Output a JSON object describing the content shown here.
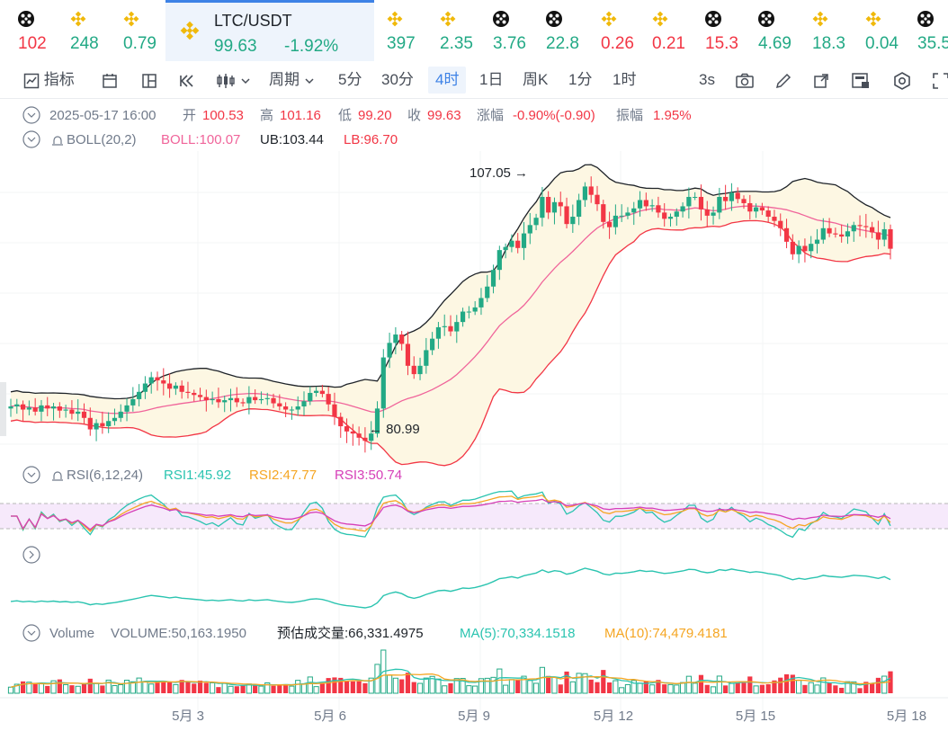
{
  "tickers": [
    {
      "icon": "chain-icon",
      "value": "102",
      "dir": "dn"
    },
    {
      "icon": "bnb-icon",
      "value": "248",
      "dir": "up"
    },
    {
      "icon": "bnb-icon",
      "value": "0.79",
      "dir": "up"
    },
    {
      "icon": "bnb-icon",
      "value": "397",
      "dir": "up"
    },
    {
      "icon": "bnb-icon",
      "value": "2.35",
      "dir": "up"
    },
    {
      "icon": "chain-icon",
      "value": "3.76",
      "dir": "up"
    },
    {
      "icon": "chain-icon",
      "value": "22.8",
      "dir": "up"
    },
    {
      "icon": "bnb-icon",
      "value": "0.26",
      "dir": "dn"
    },
    {
      "icon": "bnb-icon",
      "value": "0.21",
      "dir": "dn"
    },
    {
      "icon": "chain-icon",
      "value": "15.3",
      "dir": "dn"
    },
    {
      "icon": "chain-icon",
      "value": "4.69",
      "dir": "up"
    },
    {
      "icon": "bnb-icon",
      "value": "18.3",
      "dir": "up"
    },
    {
      "icon": "bnb-icon",
      "value": "0.04",
      "dir": "up"
    },
    {
      "icon": "chain-icon",
      "value": "35.5",
      "dir": "up"
    }
  ],
  "active_ticker": {
    "symbol": "LTC/USDT",
    "price": "99.63",
    "change": "-1.92%"
  },
  "toolbar": {
    "indicators": "指标",
    "period_label": "周期",
    "intervals": [
      "5分",
      "30分",
      "4时",
      "1日",
      "周K",
      "1分",
      "1时"
    ],
    "active_interval": "4时",
    "refresh": "3s"
  },
  "ohlc": {
    "date": "2025-05-17 16:00",
    "open_label": "开",
    "open": "100.53",
    "high_label": "高",
    "high": "101.16",
    "low_label": "低",
    "low": "99.20",
    "close_label": "收",
    "close": "99.63",
    "change_label": "涨幅",
    "change": "-0.90%(-0.90)",
    "amp_label": "振幅",
    "amp": "1.95%"
  },
  "boll": {
    "label": "BOLL(20,2)",
    "boll": "BOLL:100.07",
    "ub": "UB:103.44",
    "lb": "LB:96.70"
  },
  "rsi": {
    "label": "RSI(6,12,24)",
    "rsi1": "RSI1:45.92",
    "rsi2": "RSI2:47.77",
    "rsi3": "RSI3:50.74"
  },
  "volume": {
    "label": "Volume",
    "value": "VOLUME:50,163.1950",
    "estimate": "预估成交量:66,331.4975",
    "ma5": "MA(5):70,334.1518",
    "ma10": "MA(10):74,479.4181"
  },
  "colors": {
    "up": "#22a985",
    "down": "#f23645",
    "boll": "#f0649a",
    "ub": "#1e2329",
    "lb": "#f23645",
    "rsi1": "#2bc4b0",
    "rsi2": "#f5a623",
    "rsi3": "#d63fb8",
    "accent": "#3d82e6"
  },
  "chart_data": {
    "type": "candlestick",
    "interval": "4h",
    "x_ticks": [
      "5月 3",
      "5月 6",
      "5月 9",
      "5月 12",
      "5月 15",
      "5月 18"
    ],
    "annotations": [
      {
        "text": "107.05",
        "kind": "high"
      },
      {
        "text": "80.99",
        "kind": "low"
      }
    ],
    "close_series": [
      84.5,
      84.7,
      84.2,
      84.4,
      84.0,
      84.6,
      84.3,
      84.5,
      84.1,
      84.2,
      83.8,
      84.0,
      83.4,
      82.3,
      82.9,
      82.6,
      83.1,
      83.4,
      84.0,
      84.6,
      85.2,
      85.9,
      86.7,
      87.3,
      87.0,
      86.7,
      86.2,
      86.5,
      85.9,
      85.8,
      85.6,
      85.4,
      85.1,
      85.2,
      84.9,
      85.1,
      85.3,
      84.9,
      84.8,
      85.4,
      85.1,
      85.2,
      85.3,
      84.8,
      84.5,
      84.2,
      84.2,
      84.5,
      85.0,
      85.8,
      86.0,
      85.7,
      84.7,
      83.5,
      82.6,
      82.1,
      81.9,
      81.5,
      81.2,
      81.9,
      84.3,
      89.2,
      90.6,
      91.4,
      90.5,
      88.4,
      87.6,
      88.4,
      89.9,
      91.0,
      92.1,
      92.2,
      91.7,
      92.6,
      93.6,
      93.6,
      94.0,
      94.9,
      96.0,
      97.6,
      99.5,
      99.8,
      100.4,
      99.7,
      101.1,
      101.9,
      102.6,
      104.6,
      103.1,
      104.1,
      103.7,
      102.0,
      102.7,
      104.3,
      105.6,
      104.8,
      103.9,
      102.2,
      101.7,
      102.8,
      102.8,
      103.1,
      103.5,
      104.3,
      103.7,
      103.8,
      103.1,
      102.5,
      102.7,
      103.2,
      103.7,
      104.6,
      104.6,
      103.4,
      102.8,
      103.1,
      104.6,
      104.2,
      105.0,
      104.4,
      104.0,
      103.2,
      103.6,
      103.3,
      102.7,
      102.3,
      101.6,
      100.3,
      99.1,
      99.9,
      99.4,
      100.1,
      100.5,
      101.6,
      101.1,
      101.0,
      100.8,
      101.3,
      101.9,
      101.8,
      101.7,
      101.2,
      100.5,
      101.5,
      99.63
    ],
    "boll_mid_start": 84.6,
    "ylim": [
      79.5,
      109
    ]
  }
}
